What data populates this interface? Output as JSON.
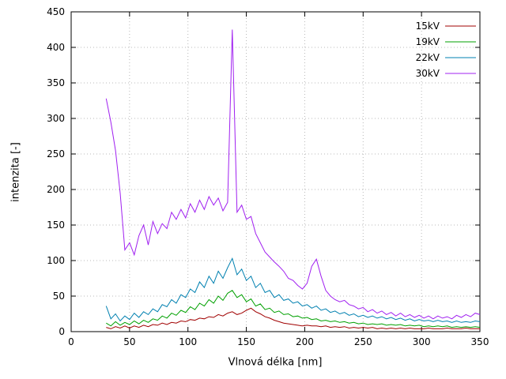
{
  "chart_data": {
    "type": "line",
    "title": "",
    "xlabel": "Vlnová délka [nm]",
    "ylabel": "intenzita [-]",
    "xlim": [
      0,
      350
    ],
    "ylim": [
      0,
      450
    ],
    "x_ticks": [
      0,
      50,
      100,
      150,
      200,
      250,
      300,
      350
    ],
    "y_ticks": [
      0,
      50,
      100,
      150,
      200,
      250,
      300,
      350,
      400,
      450
    ],
    "grid": true,
    "grid_color": "#b8b8b8",
    "axis_color": "#000000",
    "legend_position": "top-right",
    "x": [
      30,
      34,
      38,
      42,
      46,
      50,
      54,
      58,
      62,
      66,
      70,
      74,
      78,
      82,
      86,
      90,
      94,
      98,
      102,
      106,
      110,
      114,
      118,
      122,
      126,
      130,
      134,
      138,
      142,
      146,
      150,
      154,
      158,
      162,
      166,
      170,
      174,
      178,
      182,
      186,
      190,
      194,
      198,
      202,
      206,
      210,
      214,
      218,
      222,
      226,
      230,
      234,
      238,
      242,
      246,
      250,
      254,
      258,
      262,
      266,
      270,
      274,
      278,
      282,
      286,
      290,
      294,
      298,
      302,
      306,
      310,
      314,
      318,
      322,
      326,
      330,
      334,
      338,
      342,
      346,
      350
    ],
    "series": [
      {
        "name": "15kV",
        "color": "#a00000",
        "values": [
          6,
          4,
          7,
          5,
          8,
          5,
          8,
          6,
          9,
          7,
          10,
          9,
          12,
          10,
          13,
          12,
          15,
          14,
          17,
          16,
          19,
          18,
          21,
          20,
          24,
          22,
          26,
          28,
          24,
          26,
          30,
          33,
          28,
          25,
          21,
          19,
          16,
          14,
          12,
          11,
          10,
          9,
          8,
          9,
          8,
          8,
          7,
          8,
          6,
          7,
          6,
          7,
          5,
          6,
          5,
          6,
          5,
          6,
          4,
          5,
          4,
          5,
          4,
          5,
          4,
          5,
          4,
          4,
          4,
          5,
          4,
          4,
          4,
          5,
          4,
          4,
          4,
          5,
          4,
          4,
          4
        ]
      },
      {
        "name": "19kV",
        "color": "#00a000",
        "values": [
          12,
          8,
          14,
          9,
          13,
          10,
          15,
          11,
          16,
          13,
          18,
          16,
          22,
          19,
          26,
          23,
          30,
          27,
          35,
          31,
          40,
          36,
          45,
          40,
          50,
          44,
          54,
          58,
          48,
          52,
          42,
          46,
          36,
          39,
          31,
          33,
          27,
          29,
          24,
          25,
          21,
          22,
          19,
          20,
          17,
          18,
          15,
          16,
          14,
          15,
          13,
          14,
          12,
          13,
          11,
          12,
          10,
          11,
          10,
          11,
          9,
          10,
          9,
          10,
          8,
          9,
          8,
          9,
          7,
          8,
          7,
          8,
          7,
          8,
          6,
          7,
          6,
          7,
          6,
          7,
          6
        ]
      },
      {
        "name": "22kV",
        "color": "#0080b0",
        "values": [
          36,
          18,
          25,
          15,
          22,
          17,
          26,
          20,
          28,
          24,
          32,
          28,
          38,
          35,
          45,
          40,
          52,
          48,
          60,
          55,
          70,
          62,
          78,
          68,
          85,
          75,
          90,
          103,
          80,
          88,
          72,
          78,
          62,
          68,
          55,
          58,
          48,
          52,
          44,
          46,
          40,
          42,
          36,
          38,
          33,
          36,
          30,
          32,
          27,
          29,
          25,
          27,
          23,
          25,
          21,
          23,
          20,
          22,
          19,
          21,
          18,
          20,
          17,
          19,
          16,
          18,
          15,
          17,
          15,
          16,
          14,
          16,
          14,
          15,
          13,
          15,
          13,
          14,
          13,
          15,
          14
        ]
      },
      {
        "name": "30kV",
        "color": "#a020f0",
        "values": [
          328,
          295,
          255,
          195,
          115,
          125,
          108,
          135,
          150,
          122,
          155,
          138,
          152,
          145,
          168,
          158,
          172,
          160,
          180,
          168,
          185,
          172,
          190,
          178,
          188,
          170,
          182,
          425,
          168,
          178,
          158,
          162,
          138,
          125,
          112,
          105,
          98,
          92,
          85,
          75,
          72,
          65,
          60,
          68,
          92,
          102,
          78,
          58,
          50,
          45,
          42,
          44,
          38,
          36,
          32,
          34,
          28,
          31,
          26,
          29,
          24,
          27,
          22,
          26,
          21,
          24,
          20,
          23,
          19,
          22,
          18,
          22,
          19,
          21,
          18,
          23,
          20,
          24,
          21,
          26,
          24
        ]
      }
    ]
  }
}
